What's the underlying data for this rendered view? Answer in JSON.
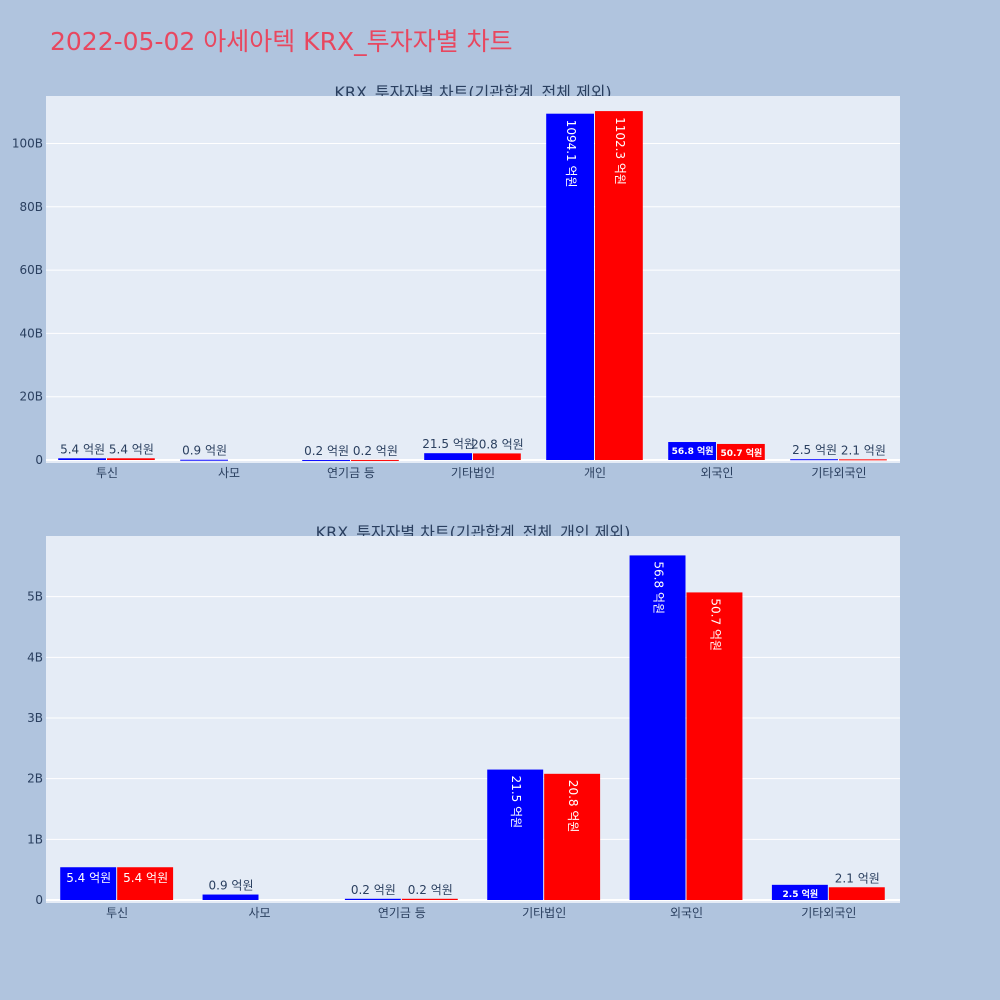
{
  "page": {
    "title": "2022-05-02 아세아텍 KRX_투자자별 차트"
  },
  "colors": {
    "background": "#b0c4de",
    "plot_bg": "#e5ecf6",
    "buy": "#0000ff",
    "sell": "#ff0000",
    "title": "#e8475f",
    "text": "#2a3f5f"
  },
  "chart_data": [
    {
      "type": "bar",
      "title": "KRX_투자자별 차트(기관합계_전체 제외)",
      "categories": [
        "투신",
        "사모",
        "연기금 등",
        "기타법인",
        "개인",
        "외국인",
        "기타외국인"
      ],
      "series": [
        {
          "color": "#0000ff",
          "values": [
            0.54,
            0.09,
            0.02,
            2.15,
            109.41,
            5.68,
            0.25
          ],
          "labels": [
            "5.4 억원",
            "0.9 억원",
            "0.2 억원",
            "21.5 억원",
            "1094.1 억원",
            "56.8 억원",
            "2.5 억원"
          ]
        },
        {
          "color": "#ff0000",
          "values": [
            0.54,
            0,
            0.02,
            2.08,
            110.23,
            5.07,
            0.21
          ],
          "labels": [
            "5.4 억원",
            "",
            "0.2 억원",
            "20.8 억원",
            "1102.3 억원",
            "50.7 억원",
            "2.1 억원"
          ]
        }
      ],
      "yticks": [
        0,
        20,
        40,
        60,
        80,
        100
      ],
      "ytick_labels": [
        "0",
        "20B",
        "40B",
        "60B",
        "80B",
        "100B"
      ],
      "ylim": [
        0,
        115
      ],
      "barmode": "group",
      "grid": true
    },
    {
      "type": "bar",
      "title": "KRX_투자자별 차트(기관합계_전체_개인 제외)",
      "categories": [
        "투신",
        "사모",
        "연기금 등",
        "기타법인",
        "외국인",
        "기타외국인"
      ],
      "series": [
        {
          "color": "#0000ff",
          "values": [
            0.54,
            0.09,
            0.02,
            2.15,
            5.68,
            0.25
          ],
          "labels": [
            "5.4 억원",
            "0.9 억원",
            "0.2 억원",
            "21.5 억원",
            "56.8 억원",
            "2.5 억원"
          ]
        },
        {
          "color": "#ff0000",
          "values": [
            0.54,
            0,
            0.02,
            2.08,
            5.07,
            0.21
          ],
          "labels": [
            "5.4 억원",
            "",
            "0.2 억원",
            "20.8 억원",
            "50.7 억원",
            "2.1 억원"
          ]
        }
      ],
      "yticks": [
        0,
        1,
        2,
        3,
        4,
        5
      ],
      "ytick_labels": [
        "0",
        "1B",
        "2B",
        "3B",
        "4B",
        "5B"
      ],
      "ylim": [
        0,
        6
      ],
      "barmode": "group",
      "grid": true
    }
  ]
}
